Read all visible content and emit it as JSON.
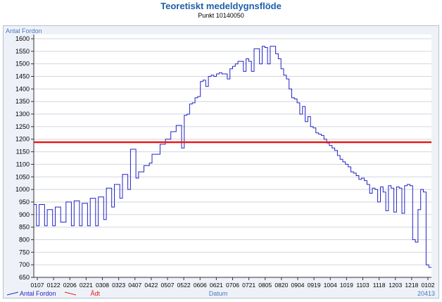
{
  "chart_data": {
    "type": "line",
    "title": "Teoretiskt medeldygnsflöde",
    "subtitle": "Punkt 10140050",
    "ylabel": "Antal Fordon",
    "xlabel": "Datum",
    "ylim": [
      650,
      1600
    ],
    "yticks": [
      650,
      700,
      750,
      800,
      850,
      900,
      950,
      1000,
      1050,
      1100,
      1150,
      1200,
      1250,
      1300,
      1350,
      1400,
      1450,
      1500,
      1550,
      1600
    ],
    "x_tick_labels": [
      "0107",
      "0122",
      "0206",
      "0221",
      "0308",
      "0323",
      "0407",
      "0422",
      "0507",
      "0522",
      "0606",
      "0621",
      "0706",
      "0721",
      "0805",
      "0820",
      "0904",
      "0919",
      "1004",
      "1019",
      "1103",
      "1118",
      "1203",
      "1218",
      "0102"
    ],
    "corner_label": "20413",
    "grid": true,
    "legend_position": "bottom-left",
    "series": [
      {
        "name": "Antal Fordon",
        "color": "#2323c8",
        "x_start": "0107",
        "x_step_days": 3,
        "values": [
          940,
          855,
          940,
          940,
          855,
          920,
          920,
          855,
          930,
          930,
          870,
          870,
          950,
          950,
          855,
          955,
          955,
          855,
          945,
          945,
          855,
          965,
          965,
          855,
          970,
          970,
          880,
          1005,
          1005,
          930,
          1020,
          1020,
          965,
          1060,
          1060,
          1000,
          1160,
          1160,
          1045,
          1070,
          1070,
          1095,
          1095,
          1105,
          1140,
          1140,
          1140,
          1180,
          1180,
          1200,
          1200,
          1230,
          1230,
          1255,
          1255,
          1165,
          1295,
          1300,
          1340,
          1345,
          1365,
          1370,
          1430,
          1435,
          1410,
          1450,
          1455,
          1450,
          1460,
          1465,
          1460,
          1460,
          1440,
          1480,
          1490,
          1500,
          1510,
          1510,
          1470,
          1520,
          1510,
          1470,
          1560,
          1560,
          1500,
          1570,
          1565,
          1500,
          1570,
          1570,
          1540,
          1520,
          1480,
          1455,
          1440,
          1400,
          1365,
          1360,
          1345,
          1300,
          1330,
          1270,
          1290,
          1250,
          1245,
          1225,
          1220,
          1215,
          1200,
          1185,
          1175,
          1165,
          1155,
          1135,
          1120,
          1110,
          1100,
          1090,
          1070,
          1065,
          1055,
          1040,
          1045,
          1035,
          1020,
          985,
          1005,
          1000,
          950,
          1010,
          990,
          915,
          1015,
          1005,
          910,
          1010,
          1005,
          905,
          1015,
          1020,
          1015,
          800,
          790,
          920,
          1000,
          990,
          700,
          690
        ]
      },
      {
        "name": "Ådt",
        "color": "#e81919",
        "values": [
          1188
        ]
      }
    ]
  }
}
